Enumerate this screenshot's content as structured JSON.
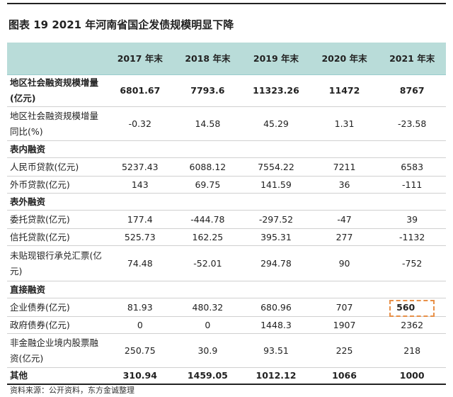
{
  "title": "图表 19   2021 年河南省国企发债规模明显下降",
  "columns": [
    "",
    "2017 年末",
    "2018 年末",
    "2019 年末",
    "2020 年末",
    "2021 年末"
  ],
  "rows": [
    {
      "label": "地区社会融资规模增量(亿元)",
      "values": [
        "6801.67",
        "7793.6",
        "11323.26",
        "11472",
        "8767"
      ],
      "bold": true
    },
    {
      "label": "地区社会融资规模增量同比(%)",
      "values": [
        "-0.32",
        "14.58",
        "45.29",
        "1.31",
        "-23.58"
      ]
    },
    {
      "label": "表内融资",
      "section": true
    },
    {
      "label": "人民币贷款(亿元)",
      "values": [
        "5237.43",
        "6088.12",
        "7554.22",
        "7211",
        "6583"
      ]
    },
    {
      "label": "外币贷款(亿元)",
      "values": [
        "143",
        "69.75",
        "141.59",
        "36",
        "-111"
      ]
    },
    {
      "label": "表外融资",
      "section": true
    },
    {
      "label": "委托贷款(亿元)",
      "values": [
        "177.4",
        "-444.78",
        "-297.52",
        "-47",
        "39"
      ]
    },
    {
      "label": "信托贷款(亿元)",
      "values": [
        "525.73",
        "162.25",
        "395.31",
        "277",
        "-1132"
      ]
    },
    {
      "label": "未贴现银行承兑汇票(亿元)",
      "values": [
        "74.48",
        "-52.01",
        "294.78",
        "90",
        "-752"
      ]
    },
    {
      "label": "直接融资",
      "section": true
    },
    {
      "label": "企业债券(亿元)",
      "values": [
        "81.93",
        "480.32",
        "680.96",
        "707",
        "560"
      ],
      "highlight_index": 4
    },
    {
      "label": "政府债券(亿元)",
      "values": [
        "0",
        "0",
        "1448.3",
        "1907",
        "2362"
      ]
    },
    {
      "label": "非金融企业境内股票融资(亿元)",
      "values": [
        "250.75",
        "30.9",
        "93.51",
        "225",
        "218"
      ]
    },
    {
      "label": "其他",
      "values": [
        "310.94",
        "1459.05",
        "1012.12",
        "1066",
        "1000"
      ],
      "bold": true
    }
  ],
  "source": "资料来源：公开资料，东方金诚整理",
  "colors": {
    "header_bg": "#b9dcd9",
    "highlight_border": "#e89048"
  }
}
